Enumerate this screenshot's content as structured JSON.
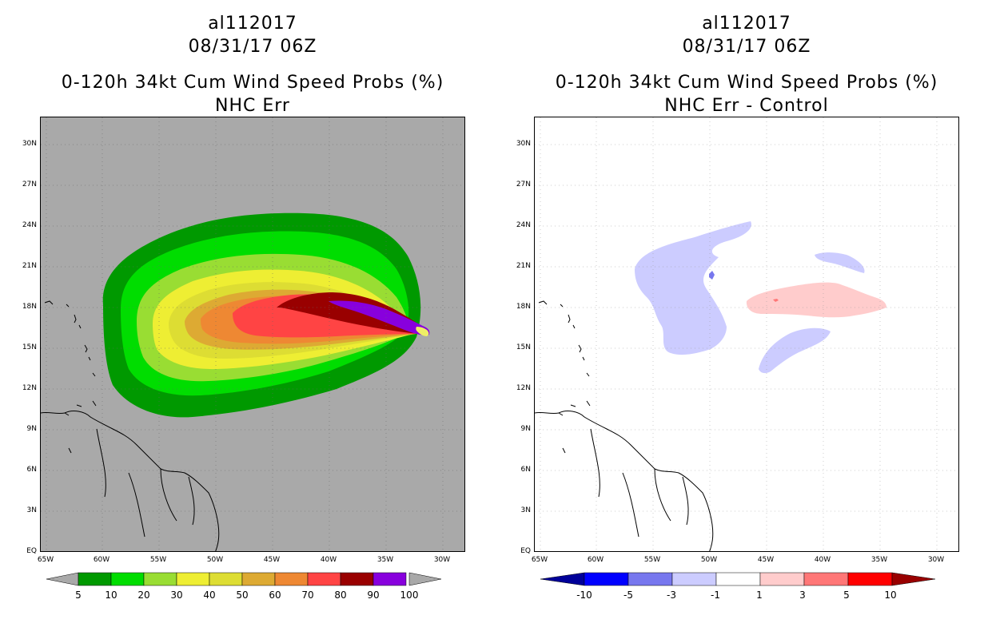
{
  "left": {
    "title_lines": [
      "al112017",
      "08/31/17 06Z",
      "0-120h 34kt Cum Wind Speed Probs (%)",
      "NHC Err"
    ],
    "y_labels": [
      "30N",
      "27N",
      "24N",
      "21N",
      "18N",
      "15N",
      "12N",
      "9N",
      "6N",
      "3N",
      "EQ"
    ],
    "x_labels": [
      "65W",
      "60W",
      "55W",
      "50W",
      "45W",
      "40W",
      "35W",
      "30W"
    ],
    "legend": {
      "labels": [
        "5",
        "10",
        "20",
        "30",
        "40",
        "50",
        "60",
        "70",
        "80",
        "90",
        "100"
      ],
      "colors": [
        "#009900",
        "#00dd00",
        "#99dd33",
        "#eeee33",
        "#dddd33",
        "#ddaa33",
        "#ee8833",
        "#ff4444",
        "#990000",
        "#8800dd"
      ]
    }
  },
  "right": {
    "title_lines": [
      "al112017",
      "08/31/17 06Z",
      "0-120h 34kt Cum Wind Speed Probs (%)",
      "NHC Err - Control"
    ],
    "y_labels": [
      "30N",
      "27N",
      "24N",
      "21N",
      "18N",
      "15N",
      "12N",
      "9N",
      "6N",
      "3N",
      "EQ"
    ],
    "x_labels": [
      "65W",
      "60W",
      "55W",
      "50W",
      "45W",
      "40W",
      "35W",
      "30W"
    ],
    "legend": {
      "labels": [
        "-10",
        "-5",
        "-3",
        "-1",
        "1",
        "3",
        "5",
        "10"
      ],
      "colors": [
        "#000099",
        "#0000ff",
        "#7777ee",
        "#ccccff",
        "#ffffff",
        "#ffcccc",
        "#ff7777",
        "#ff0000",
        "#990000"
      ]
    }
  }
}
